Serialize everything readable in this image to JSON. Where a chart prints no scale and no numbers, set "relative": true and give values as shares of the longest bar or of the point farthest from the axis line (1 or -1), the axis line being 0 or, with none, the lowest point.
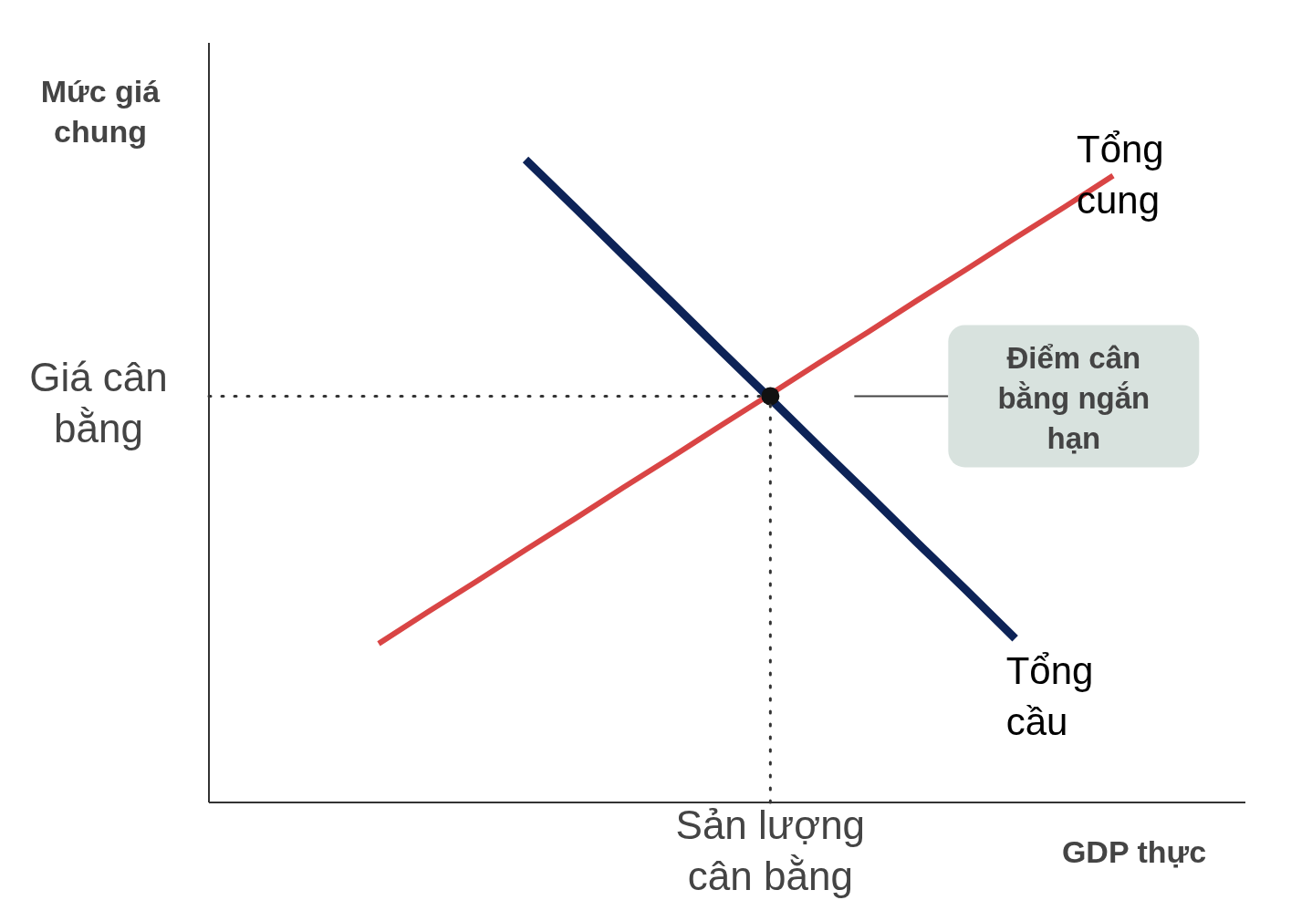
{
  "chart_data": {
    "type": "line",
    "xlabel": "GDP thực",
    "relative": true,
    "categories": [
      null,
      null,
      null,
      null,
      null,
      null,
      null,
      null,
      null,
      null,
      null,
      null,
      null,
      null,
      null,
      null
    ],
    "series": [
      {
        "name": "Tổng cung",
        "color": "#d94545",
        "values": [
          0.247,
          0.296,
          0.344,
          0.393,
          0.441,
          0.49,
          0.538,
          0.587,
          0.635,
          0.684,
          0.732,
          0.781,
          0.829,
          0.878,
          0.926,
          0.975
        ]
      },
      {
        "name": "Tổng cầu",
        "color": "#0d2357",
        "values": [
          null,
          null,
          null,
          1,
          0.926,
          0.851,
          0.777,
          0.702,
          0.628,
          0.553,
          0.479,
          0.404,
          0.33,
          0.255,
          null,
          null
        ]
      }
    ],
    "ref_lines": [
      {
        "axis": "y",
        "value": 0.632,
        "label": "Giá cân bằng",
        "line_style": "dotted",
        "color": "#333333"
      }
    ],
    "annotations": [
      "Điểm cân bằng ngắn hạn",
      "Sản lượng cân bằng",
      "Mức giá chung"
    ]
  }
}
